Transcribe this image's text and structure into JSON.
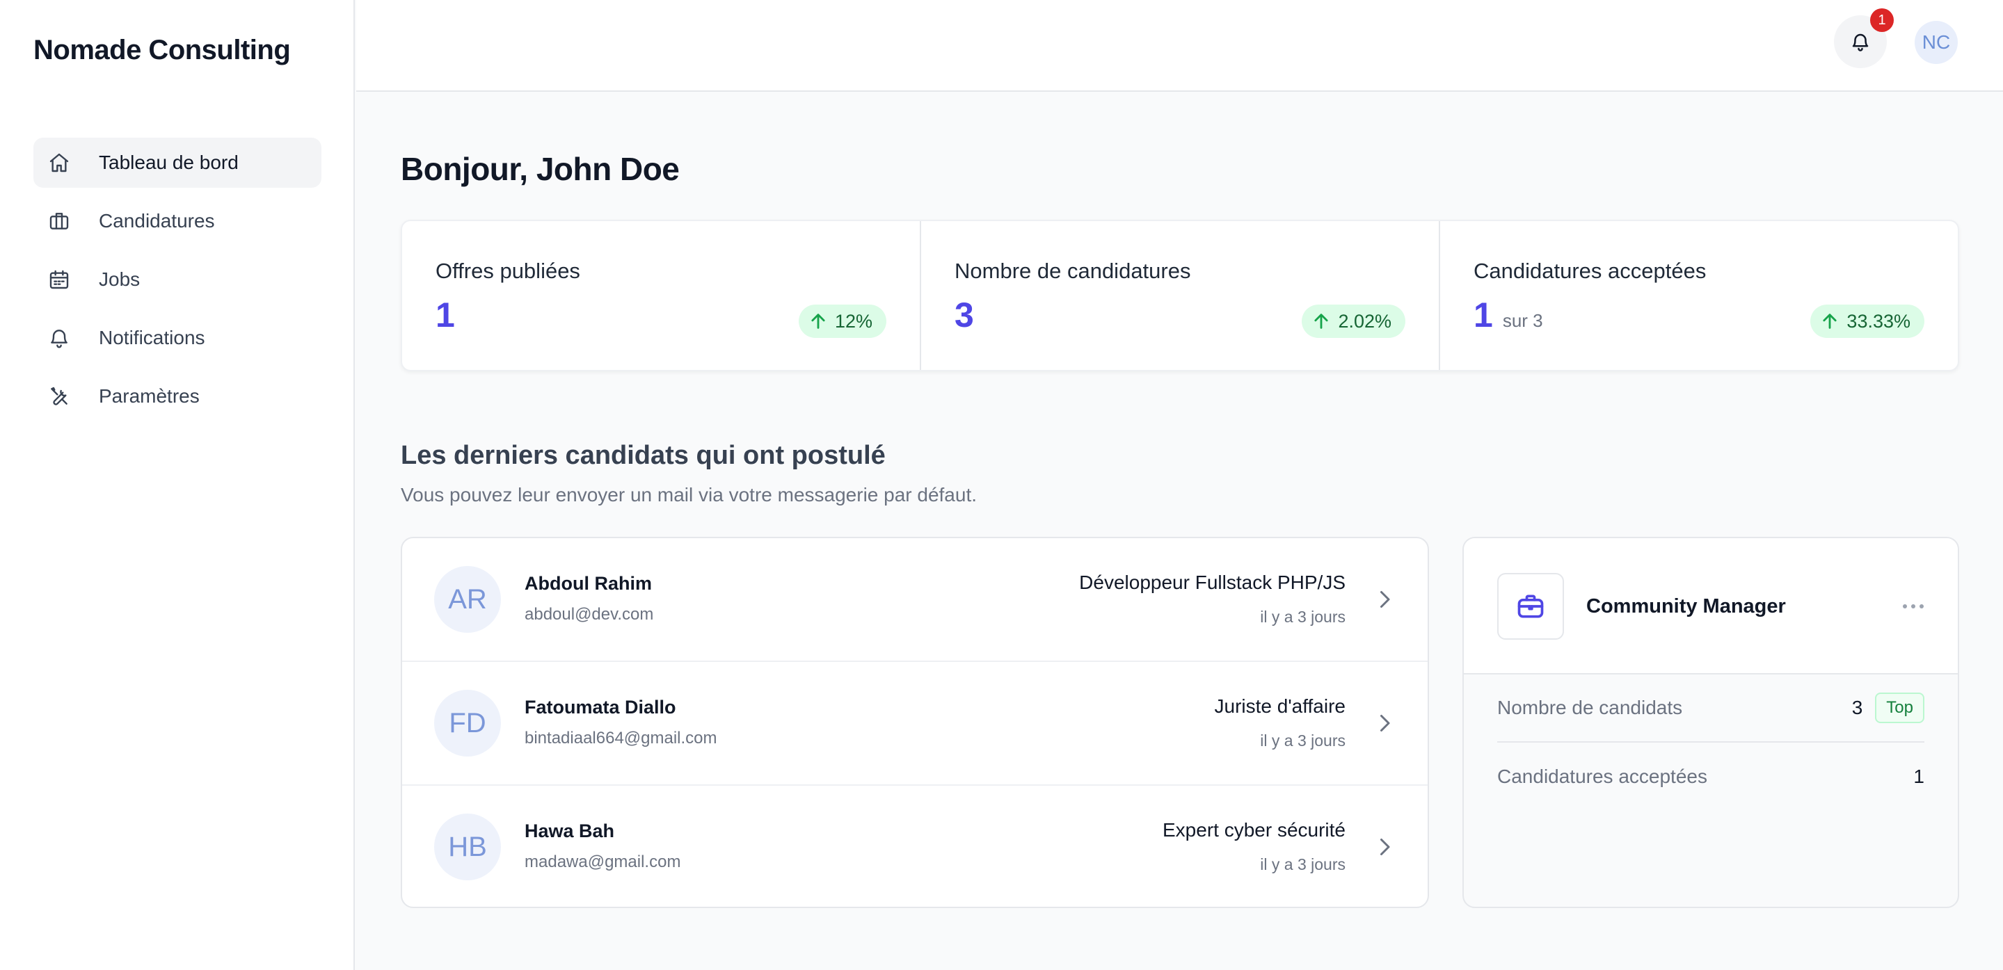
{
  "app": {
    "brand": "Nomade Consulting"
  },
  "sidebar": {
    "items": [
      {
        "label": "Tableau de bord",
        "icon": "home-icon",
        "active": true
      },
      {
        "label": "Candidatures",
        "icon": "briefcase-icon",
        "active": false
      },
      {
        "label": "Jobs",
        "icon": "calendar-icon",
        "active": false
      },
      {
        "label": "Notifications",
        "icon": "bell-icon",
        "active": false
      },
      {
        "label": "Paramètres",
        "icon": "tools-icon",
        "active": false
      }
    ]
  },
  "header": {
    "notifications_count": "1",
    "avatar_initials": "NC"
  },
  "main": {
    "greeting": "Bonjour, John Doe",
    "stats": [
      {
        "label": "Offres publiées",
        "value": "1",
        "sub": "",
        "trend": "12%"
      },
      {
        "label": "Nombre de candidatures",
        "value": "3",
        "sub": "",
        "trend": "2.02%"
      },
      {
        "label": "Candidatures acceptées",
        "value": "1",
        "sub": "sur 3",
        "trend": "33.33%"
      }
    ],
    "section_title": "Les derniers candidats qui ont postulé",
    "section_subtitle": "Vous pouvez leur envoyer un mail via votre messagerie par défaut.",
    "candidates": [
      {
        "initials": "AR",
        "name": "Abdoul Rahim",
        "email": "abdoul@dev.com",
        "job": "Développeur Fullstack PHP/JS",
        "time": "il y a 3 jours"
      },
      {
        "initials": "FD",
        "name": "Fatoumata Diallo",
        "email": "bintadiaal664@gmail.com",
        "job": "Juriste d'affaire",
        "time": "il y a 3 jours"
      },
      {
        "initials": "HB",
        "name": "Hawa Bah",
        "email": "madawa@gmail.com",
        "job": "Expert cyber sécurité",
        "time": "il y a 3 jours"
      }
    ],
    "job_card": {
      "title": "Community Manager",
      "rows": [
        {
          "label": "Nombre de candidats",
          "value": "3",
          "tag": "Top"
        },
        {
          "label": "Candidatures acceptées",
          "value": "1",
          "tag": ""
        }
      ]
    }
  },
  "colors": {
    "accent": "#4f46e5",
    "trend_bg": "#dcfce7",
    "badge": "#dc2626"
  }
}
